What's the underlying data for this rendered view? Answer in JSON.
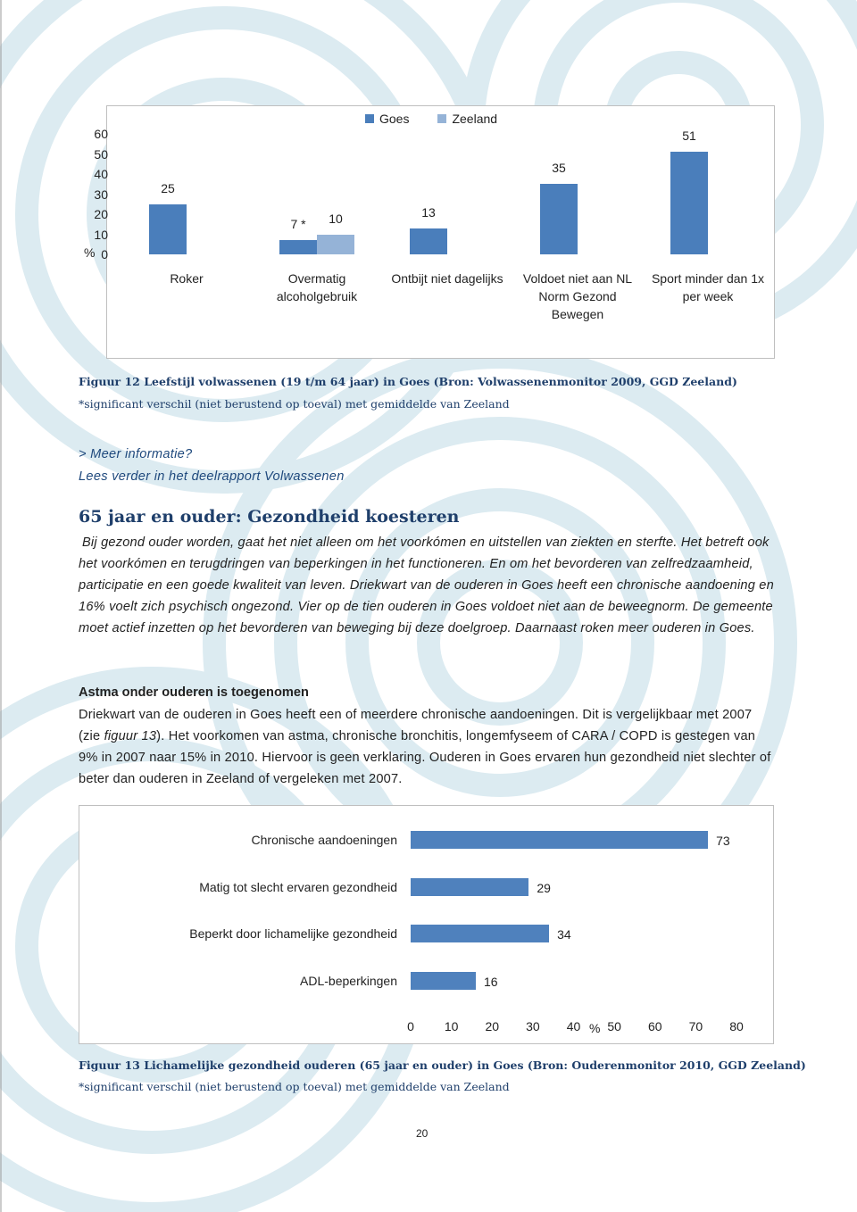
{
  "chart_data": [
    {
      "type": "bar",
      "orientation": "vertical",
      "categories": [
        "Roker",
        "Overmatig alcoholgebruik",
        "Ontbijt niet dagelijks",
        "Voldoet niet aan NL Norm Gezond Bewegen",
        "Sport minder dan 1x per week"
      ],
      "series": [
        {
          "name": "Goes",
          "color": "#4a7ebb",
          "values": [
            25,
            7,
            13,
            35,
            51
          ],
          "value_labels": [
            "25",
            "7 *",
            "13",
            "35",
            "51"
          ]
        },
        {
          "name": "Zeeland",
          "color": "#95b3d7",
          "values": [
            null,
            10,
            null,
            null,
            null
          ]
        }
      ],
      "y_label": "%",
      "ylim": [
        0,
        60
      ],
      "yticks": [
        0,
        10,
        20,
        30,
        40,
        50,
        60
      ],
      "legend": "top"
    },
    {
      "type": "bar",
      "orientation": "horizontal",
      "categories": [
        "Chronische aandoeningen",
        "Matig tot slecht ervaren gezondheid",
        "Beperkt door lichamelijke gezondheid",
        "ADL-beperkingen"
      ],
      "values": [
        73,
        29,
        34,
        16
      ],
      "color": "#4f81bd",
      "x_label": "%",
      "xlim": [
        0,
        80
      ],
      "xticks": [
        0,
        10,
        20,
        30,
        40,
        50,
        60,
        70,
        80
      ]
    }
  ],
  "figure12": {
    "caption": "Figuur 12 Leefstijl volwassenen (19 t/m 64 jaar) in Goes (Bron: Volwassenenmonitor 2009, GGD Zeeland)",
    "note": "*significant verschil (niet berustend op toeval) met gemiddelde van Zeeland"
  },
  "more_info": {
    "link": "> Meer informatie?",
    "text": "Lees verder in het deelrapport Volwassenen"
  },
  "section": {
    "heading": "65 jaar en ouder: Gezondheid koesteren",
    "intro": "Bij gezond ouder worden, gaat het niet alleen om het voorkómen en uitstellen van ziekten en sterfte. Het betreft ook het voorkómen en terugdringen van beperkingen in het functioneren. En om het bevorderen van zelfredzaamheid, participatie en een goede kwaliteit van leven. Driekwart van de ouderen in Goes heeft een chronische aandoening en 16% voelt zich psychisch ongezond. Vier op de tien ouderen in Goes voldoet niet aan de beweegnorm. De gemeente moet actief inzetten op het bevorderen van beweging bij deze doelgroep. Daarnaast roken meer ouderen in Goes."
  },
  "subsection": {
    "heading": "Astma onder ouderen is toegenomen",
    "text_before": "Driekwart van de ouderen in Goes heeft een of meerdere chronische aandoeningen. Dit is vergelijkbaar met 2007 (zie ",
    "figure_ref": "figuur 13",
    "text_after": "). Het voorkomen van astma, chronische bronchitis, longemfyseem of CARA / COPD is gestegen van 9% in 2007 naar 15% in 2010. Hiervoor is geen verklaring. Ouderen in Goes ervaren hun gezondheid niet slechter of beter dan ouderen in Zeeland of vergeleken met 2007."
  },
  "figure13": {
    "caption": "Figuur 13 Lichamelijke gezondheid ouderen (65 jaar en ouder) in Goes (Bron: Ouderenmonitor 2010, GGD Zeeland)",
    "note": "*significant verschil (niet berustend op toeval) met gemiddelde van Zeeland"
  },
  "page_number": "20"
}
